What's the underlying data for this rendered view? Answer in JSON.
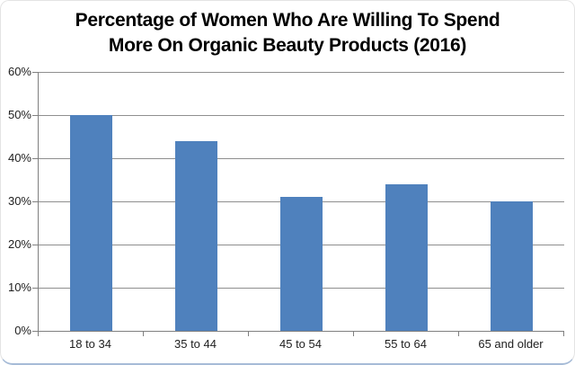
{
  "chart_data": {
    "type": "bar",
    "title": "Percentage of Women Who Are Willing To Spend More On Organic Beauty Products (2016)",
    "title_lines": [
      "Percentage of Women Who Are Willing To Spend",
      "More On Organic Beauty Products (2016)"
    ],
    "categories": [
      "18 to 34",
      "35 to 44",
      "45 to 54",
      "55 to 64",
      "65 and older"
    ],
    "values": [
      50,
      44,
      31,
      34,
      30
    ],
    "value_unit": "%",
    "xlabel": "",
    "ylabel": "",
    "ylim": [
      0,
      60
    ],
    "ytick_step": 10,
    "y_axis_labels_top_down": [
      "60%",
      "50%",
      "40%",
      "30%",
      "20%",
      "10%",
      "0%"
    ],
    "grid": true,
    "legend_position": "none",
    "colors": {
      "bar": "#4f81bd",
      "gridline": "#8f8f8f",
      "axis": "#808080",
      "title_text": "#000000",
      "tick_text": "#212121",
      "frame_border_bottom": "#a6bbd7",
      "frame_border": "#e4e4e4",
      "background": "#ffffff"
    }
  }
}
